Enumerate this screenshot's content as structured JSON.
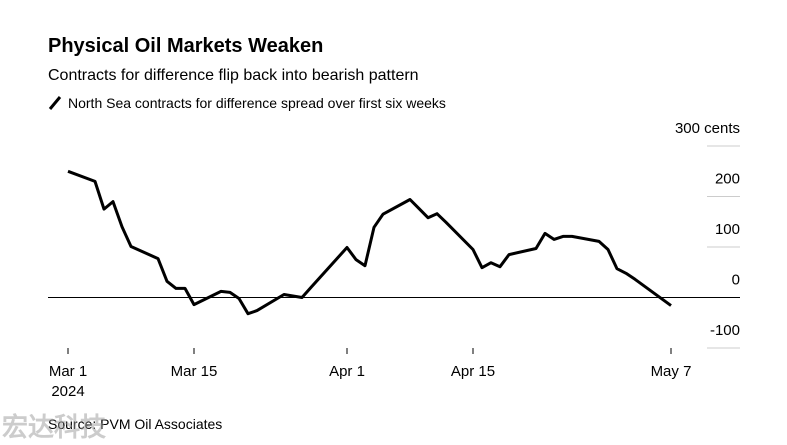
{
  "chart_data": {
    "type": "line",
    "title": "Physical Oil Markets Weaken",
    "subtitle": "Contracts for difference flip back into bearish pattern",
    "source": "Source: PVM Oil Associates",
    "watermark": "宏达科技",
    "year_label": "2024",
    "x": [
      "2024-03-01",
      "2024-03-04",
      "2024-03-05",
      "2024-03-06",
      "2024-03-07",
      "2024-03-08",
      "2024-03-11",
      "2024-03-12",
      "2024-03-13",
      "2024-03-14",
      "2024-03-15",
      "2024-03-18",
      "2024-03-19",
      "2024-03-20",
      "2024-03-21",
      "2024-03-22",
      "2024-03-25",
      "2024-03-26",
      "2024-03-27",
      "2024-03-28",
      "2024-04-01",
      "2024-04-02",
      "2024-04-03",
      "2024-04-04",
      "2024-04-05",
      "2024-04-08",
      "2024-04-09",
      "2024-04-10",
      "2024-04-11",
      "2024-04-12",
      "2024-04-15",
      "2024-04-16",
      "2024-04-17",
      "2024-04-18",
      "2024-04-19",
      "2024-04-22",
      "2024-04-23",
      "2024-04-24",
      "2024-04-25",
      "2024-04-26",
      "2024-04-29",
      "2024-04-30",
      "2024-05-01",
      "2024-05-02",
      "2024-05-03",
      "2024-05-07"
    ],
    "series": [
      {
        "name": "North Sea contracts for difference spread over first six weeks",
        "color": "#000000",
        "values": [
          250,
          230,
          175,
          190,
          140,
          101,
          77,
          32,
          18,
          18,
          -14,
          12,
          10,
          -2,
          -32,
          -26,
          6,
          3,
          0,
          20,
          99,
          75,
          63,
          139,
          165,
          194,
          176,
          158,
          166,
          149,
          95,
          59,
          69,
          61,
          85,
          97,
          127,
          115,
          121,
          121,
          111,
          95,
          57,
          48,
          36,
          -16
        ]
      }
    ],
    "xlim": [
      "2024-02-28",
      "2024-05-11"
    ],
    "xticks": [
      {
        "value": "2024-03-01",
        "label": "Mar 1"
      },
      {
        "value": "2024-03-15",
        "label": "Mar 15"
      },
      {
        "value": "2024-04-01",
        "label": "Apr 1"
      },
      {
        "value": "2024-04-15",
        "label": "Apr 15"
      },
      {
        "value": "2024-05-07",
        "label": "May 7"
      }
    ],
    "ylim": [
      -100,
      300
    ],
    "yticks": [
      {
        "value": 300,
        "label": "300 cents"
      },
      200,
      100,
      0,
      -100
    ],
    "grid": true
  }
}
